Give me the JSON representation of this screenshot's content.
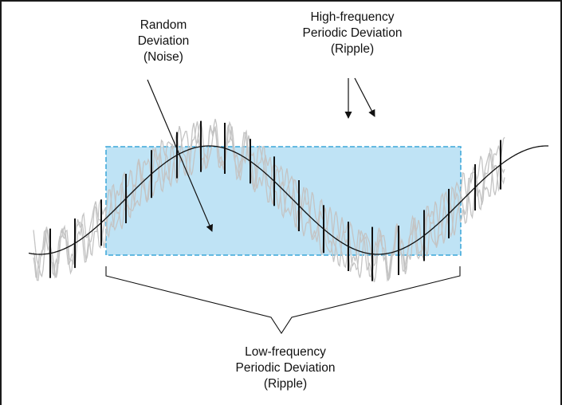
{
  "labels": {
    "random": [
      "Random",
      "Deviation",
      "(Noise)"
    ],
    "high_freq": [
      "High-frequency",
      "Periodic Deviation",
      "(Ripple)"
    ],
    "low_freq": [
      "Low-frequency",
      "Periodic Deviation",
      "(Ripple)"
    ]
  },
  "colors": {
    "frame": "#1a1a1a",
    "box_fill": "#bfe3f5",
    "box_border": "#3aa6d8",
    "noise": "#c4c4c4",
    "spikes": "#111111",
    "sine": "#111111",
    "arrows": "#111111"
  }
}
